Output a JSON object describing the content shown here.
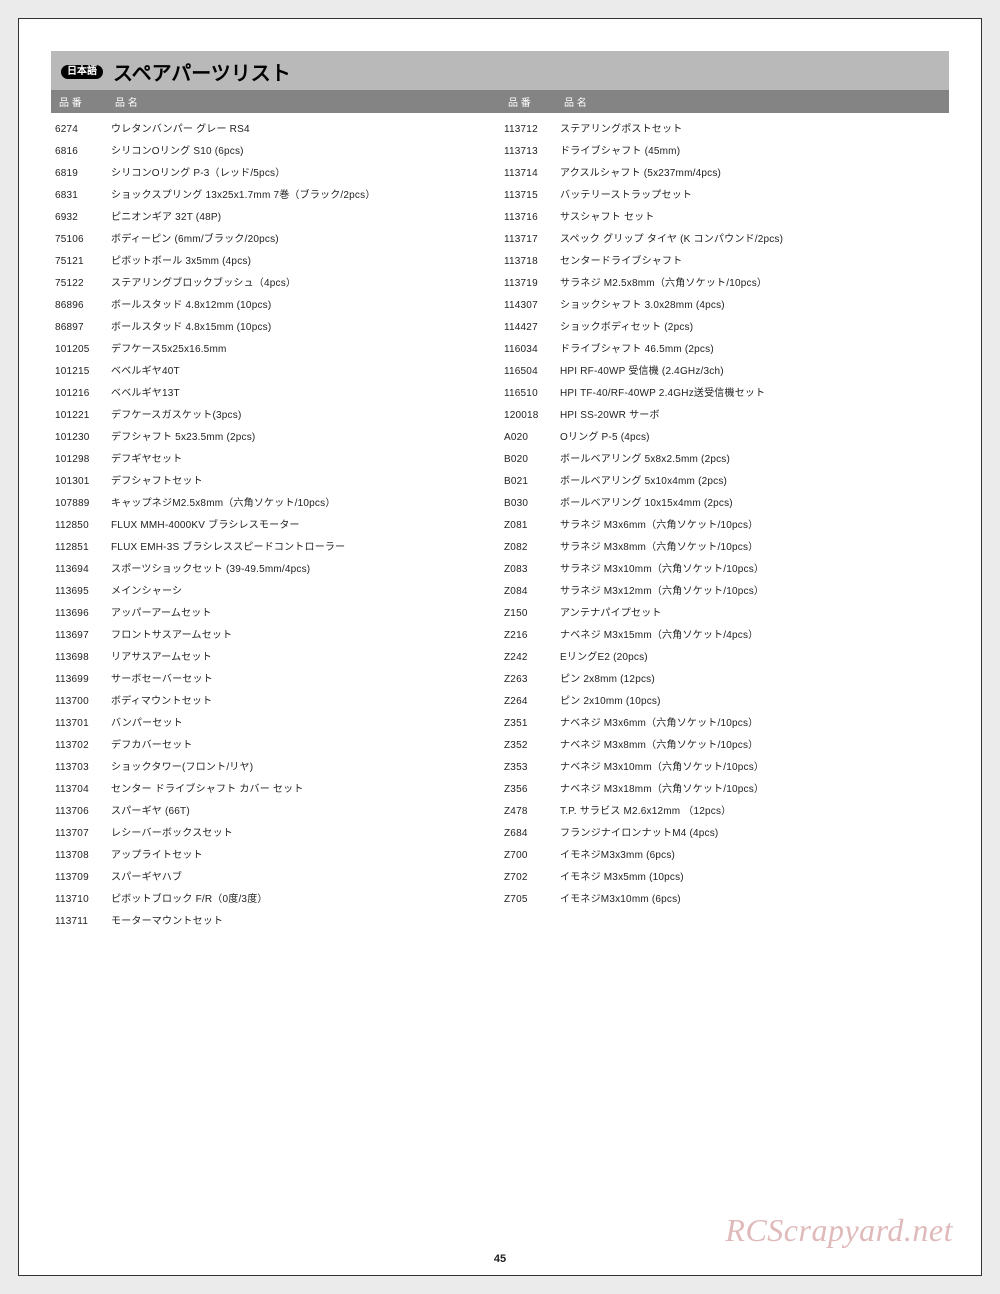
{
  "header": {
    "badge": "日本語",
    "title": "スペアパーツリスト",
    "col_num_label": "品 番",
    "col_name_label": "品 名"
  },
  "page_number": "45",
  "watermark": "RCScrapyard.net",
  "left": [
    {
      "num": "6274",
      "name": "ウレタンバンパー グレー RS4"
    },
    {
      "num": "6816",
      "name": "シリコンOリング S10 (6pcs)"
    },
    {
      "num": "6819",
      "name": "シリコンOリング P-3（レッド/5pcs）"
    },
    {
      "num": "6831",
      "name": "ショックスプリング 13x25x1.7mm 7巻（ブラック/2pcs）"
    },
    {
      "num": "6932",
      "name": "ピニオンギア 32T (48P)"
    },
    {
      "num": "75106",
      "name": "ボディーピン (6mm/ブラック/20pcs)"
    },
    {
      "num": "75121",
      "name": "ピボットボール 3x5mm (4pcs)"
    },
    {
      "num": "75122",
      "name": "ステアリングブロックブッシュ（4pcs）"
    },
    {
      "num": "86896",
      "name": "ボールスタッド 4.8x12mm (10pcs)"
    },
    {
      "num": "86897",
      "name": "ボールスタッド 4.8x15mm (10pcs)"
    },
    {
      "num": "101205",
      "name": "デフケース5x25x16.5mm"
    },
    {
      "num": "101215",
      "name": "ベベルギヤ40T"
    },
    {
      "num": "101216",
      "name": "ベベルギヤ13T"
    },
    {
      "num": "101221",
      "name": "デフケースガスケット(3pcs)"
    },
    {
      "num": "101230",
      "name": "デフシャフト 5x23.5mm (2pcs)"
    },
    {
      "num": "101298",
      "name": "デフギヤセット"
    },
    {
      "num": "101301",
      "name": "デフシャフトセット"
    },
    {
      "num": "107889",
      "name": "キャップネジM2.5x8mm（六角ソケット/10pcs）"
    },
    {
      "num": "112850",
      "name": "FLUX MMH-4000KV ブラシレスモーター"
    },
    {
      "num": "112851",
      "name": "FLUX EMH-3S  ブラシレススピードコントローラー"
    },
    {
      "num": "113694",
      "name": "スポーツショックセット (39-49.5mm/4pcs)"
    },
    {
      "num": "113695",
      "name": "メインシャーシ"
    },
    {
      "num": "113696",
      "name": "アッパーアームセット"
    },
    {
      "num": "113697",
      "name": "フロントサスアームセット"
    },
    {
      "num": "113698",
      "name": "リアサスアームセット"
    },
    {
      "num": "113699",
      "name": "サーボセーバーセット"
    },
    {
      "num": "113700",
      "name": "ボディマウントセット"
    },
    {
      "num": "113701",
      "name": "バンパーセット"
    },
    {
      "num": "113702",
      "name": "デフカバーセット"
    },
    {
      "num": "113703",
      "name": "ショックタワー(フロント/リヤ)"
    },
    {
      "num": "113704",
      "name": "センター ドライブシャフト カバー セット"
    },
    {
      "num": "113706",
      "name": "スパーギヤ (66T)"
    },
    {
      "num": "113707",
      "name": "レシーバーボックスセット"
    },
    {
      "num": "113708",
      "name": "アップライトセット"
    },
    {
      "num": "113709",
      "name": "スパーギヤハブ"
    },
    {
      "num": "113710",
      "name": "ピボットブロック F/R（0度/3度）"
    },
    {
      "num": "113711",
      "name": "モーターマウントセット"
    }
  ],
  "right": [
    {
      "num": "113712",
      "name": "ステアリングポストセット"
    },
    {
      "num": "113713",
      "name": "ドライブシャフト (45mm)"
    },
    {
      "num": "113714",
      "name": "アクスルシャフト (5x237mm/4pcs)"
    },
    {
      "num": "113715",
      "name": "バッテリーストラップセット"
    },
    {
      "num": "113716",
      "name": "サスシャフト セット"
    },
    {
      "num": "113717",
      "name": "スペック グリップ タイヤ (K コンパウンド/2pcs)"
    },
    {
      "num": "113718",
      "name": "センタードライブシャフト"
    },
    {
      "num": "113719",
      "name": "サラネジ M2.5x8mm（六角ソケット/10pcs）"
    },
    {
      "num": "114307",
      "name": "ショックシャフト 3.0x28mm (4pcs)"
    },
    {
      "num": "114427",
      "name": "ショックボディセット (2pcs)"
    },
    {
      "num": "116034",
      "name": "ドライブシャフト 46.5mm (2pcs)"
    },
    {
      "num": "116504",
      "name": "HPI RF-40WP 受信機 (2.4GHz/3ch)"
    },
    {
      "num": "116510",
      "name": "HPI TF-40/RF-40WP 2.4GHz送受信機セット"
    },
    {
      "num": "120018",
      "name": "HPI SS-20WR サーボ"
    },
    {
      "num": "A020",
      "name": "Oリング P-5 (4pcs)"
    },
    {
      "num": "B020",
      "name": "ボールベアリング 5x8x2.5mm (2pcs)"
    },
    {
      "num": "B021",
      "name": "ボールベアリング 5x10x4mm (2pcs)"
    },
    {
      "num": "B030",
      "name": "ボールベアリング 10x15x4mm (2pcs)"
    },
    {
      "num": "Z081",
      "name": "サラネジ M3x6mm（六角ソケット/10pcs）"
    },
    {
      "num": "Z082",
      "name": "サラネジ M3x8mm（六角ソケット/10pcs）"
    },
    {
      "num": "Z083",
      "name": "サラネジ M3x10mm（六角ソケット/10pcs）"
    },
    {
      "num": "Z084",
      "name": "サラネジ M3x12mm（六角ソケット/10pcs）"
    },
    {
      "num": "Z150",
      "name": "アンテナパイプセット"
    },
    {
      "num": "Z216",
      "name": "ナベネジ M3x15mm（六角ソケット/4pcs）"
    },
    {
      "num": "Z242",
      "name": "EリングE2 (20pcs)"
    },
    {
      "num": "Z263",
      "name": "ピン 2x8mm (12pcs)"
    },
    {
      "num": "Z264",
      "name": "ピン 2x10mm (10pcs)"
    },
    {
      "num": "Z351",
      "name": "ナベネジ M3x6mm（六角ソケット/10pcs）"
    },
    {
      "num": "Z352",
      "name": "ナベネジ M3x8mm（六角ソケット/10pcs）"
    },
    {
      "num": "Z353",
      "name": "ナベネジ M3x10mm（六角ソケット/10pcs）"
    },
    {
      "num": "Z356",
      "name": "ナベネジ M3x18mm（六角ソケット/10pcs）"
    },
    {
      "num": "Z478",
      "name": "T.P. サラビス M2.6x12mm （12pcs）"
    },
    {
      "num": "Z684",
      "name": "フランジナイロンナットM4 (4pcs)"
    },
    {
      "num": "Z700",
      "name": "イモネジM3x3mm (6pcs)"
    },
    {
      "num": "Z702",
      "name": "イモネジ M3x5mm (10pcs)"
    },
    {
      "num": "Z705",
      "name": "イモネジM3x10mm (6pcs)"
    }
  ]
}
